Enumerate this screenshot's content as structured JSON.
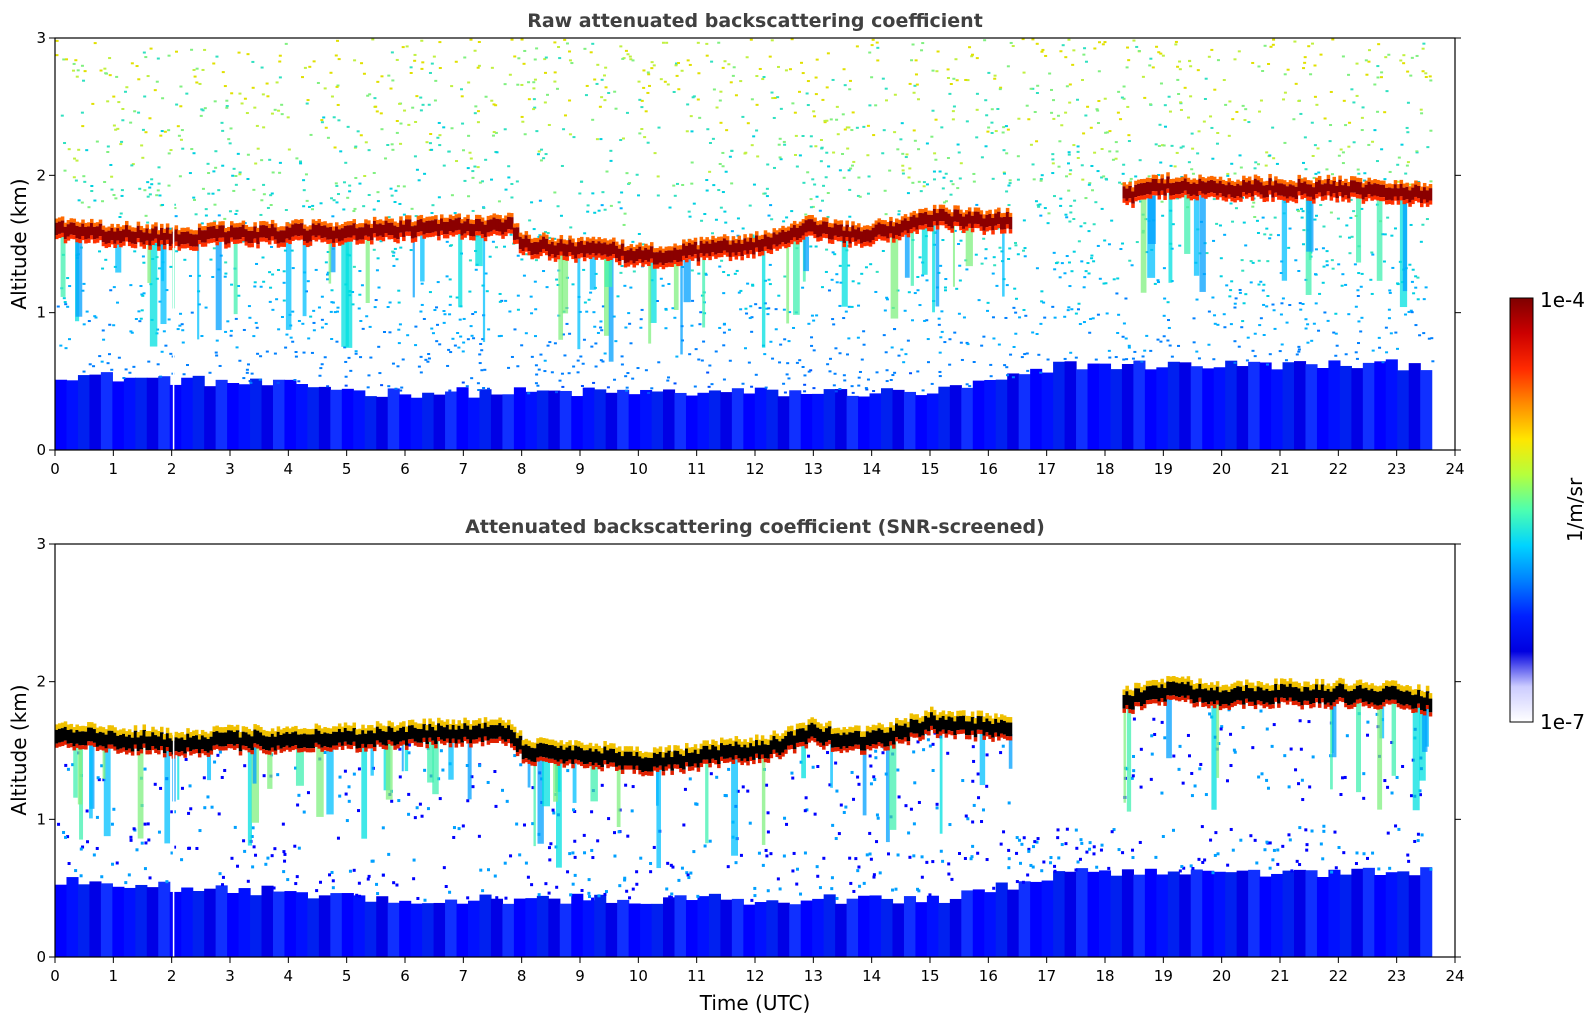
{
  "chart_data": [
    {
      "type": "heatmap",
      "title": "Raw attenuated backscattering coefficient",
      "xlabel": "",
      "ylabel": "Altitude (km)",
      "xlim": [
        0,
        24
      ],
      "ylim": [
        0,
        3
      ],
      "xticks": [
        "0",
        "1",
        "2",
        "3",
        "4",
        "5",
        "6",
        "7",
        "8",
        "9",
        "10",
        "11",
        "12",
        "13",
        "14",
        "15",
        "16",
        "17",
        "18",
        "19",
        "20",
        "21",
        "22",
        "23",
        "24"
      ],
      "yticks": [
        "0",
        "1",
        "2",
        "3"
      ],
      "data_end_hour": 23.6,
      "cloud_base_km": [
        [
          0.0,
          1.57
        ],
        [
          0.5,
          1.55
        ],
        [
          1.0,
          1.52
        ],
        [
          1.5,
          1.52
        ],
        [
          2.0,
          1.5
        ],
        [
          3.0,
          1.52
        ],
        [
          4.0,
          1.53
        ],
        [
          5.0,
          1.54
        ],
        [
          6.0,
          1.56
        ],
        [
          7.0,
          1.58
        ],
        [
          7.8,
          1.58
        ],
        [
          8.0,
          1.45
        ],
        [
          8.5,
          1.43
        ],
        [
          9.0,
          1.42
        ],
        [
          9.5,
          1.4
        ],
        [
          10.0,
          1.37
        ],
        [
          10.5,
          1.37
        ],
        [
          11.0,
          1.4
        ],
        [
          11.5,
          1.43
        ],
        [
          12.0,
          1.45
        ],
        [
          12.5,
          1.5
        ],
        [
          13.0,
          1.58
        ],
        [
          13.5,
          1.52
        ],
        [
          14.0,
          1.53
        ],
        [
          14.5,
          1.58
        ],
        [
          15.0,
          1.65
        ],
        [
          15.5,
          1.63
        ],
        [
          16.0,
          1.62
        ],
        [
          16.4,
          1.62
        ],
        [
          18.3,
          1.8
        ],
        [
          18.5,
          1.83
        ],
        [
          19.0,
          1.88
        ],
        [
          19.5,
          1.87
        ],
        [
          20.0,
          1.85
        ],
        [
          20.5,
          1.86
        ],
        [
          21.0,
          1.86
        ],
        [
          21.5,
          1.85
        ],
        [
          22.0,
          1.86
        ],
        [
          22.5,
          1.85
        ],
        [
          23.0,
          1.84
        ],
        [
          23.6,
          1.8
        ]
      ]
    },
    {
      "type": "heatmap",
      "title": "Attenuated backscattering coefficient (SNR-screened)",
      "xlabel": "Time (UTC)",
      "ylabel": "Altitude (km)",
      "xlim": [
        0,
        24
      ],
      "ylim": [
        0,
        3
      ],
      "xticks": [
        "0",
        "1",
        "2",
        "3",
        "4",
        "5",
        "6",
        "7",
        "8",
        "9",
        "10",
        "11",
        "12",
        "13",
        "14",
        "15",
        "16",
        "17",
        "18",
        "19",
        "20",
        "21",
        "22",
        "23",
        "24"
      ],
      "yticks": [
        "0",
        "1",
        "2",
        "3"
      ],
      "data_end_hour": 23.6
    }
  ],
  "colorbar": {
    "max_label": "1e-4",
    "min_label": "1e-7",
    "unit_label": "1/m/sr",
    "colors": [
      "#7f0000",
      "#cc0000",
      "#ff2a00",
      "#ff8c00",
      "#ffe600",
      "#b5ff3d",
      "#4dffb0",
      "#00d4ff",
      "#0080ff",
      "#0020ff",
      "#0000e0",
      "#ccccff",
      "#ffffff"
    ]
  }
}
